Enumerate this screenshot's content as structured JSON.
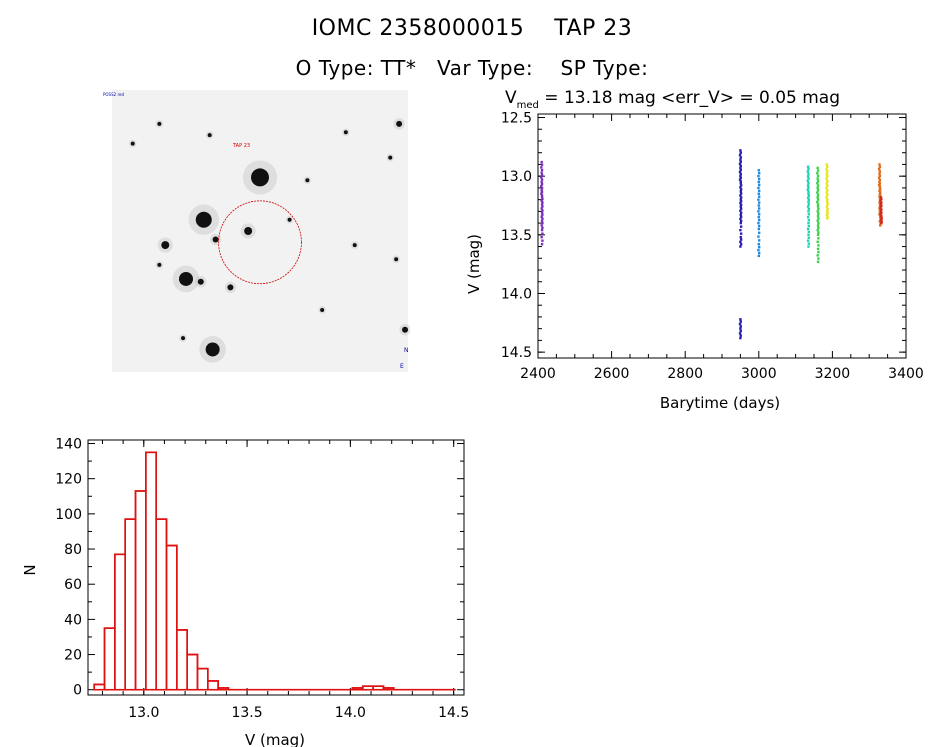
{
  "header": {
    "title": "IOMC 2358000015    TAP 23",
    "subtitle": "O Type: TT*   Var Type:    SP Type:"
  },
  "chart_data": [
    {
      "type": "image",
      "title": "",
      "description_labels": [
        "POSS2 red",
        "TAP 23",
        "E",
        "N"
      ],
      "stars": [
        {
          "x": 0.5,
          "y": 0.31,
          "r": 9
        },
        {
          "x": 0.31,
          "y": 0.46,
          "r": 8
        },
        {
          "x": 0.25,
          "y": 0.67,
          "r": 7
        },
        {
          "x": 0.34,
          "y": 0.92,
          "r": 7
        },
        {
          "x": 0.18,
          "y": 0.55,
          "r": 4
        },
        {
          "x": 0.46,
          "y": 0.5,
          "r": 4
        },
        {
          "x": 0.35,
          "y": 0.53,
          "r": 3
        },
        {
          "x": 0.4,
          "y": 0.7,
          "r": 3
        },
        {
          "x": 0.3,
          "y": 0.68,
          "r": 3
        },
        {
          "x": 0.97,
          "y": 0.12,
          "r": 3
        },
        {
          "x": 0.99,
          "y": 0.85,
          "r": 3
        },
        {
          "x": 0.16,
          "y": 0.12,
          "r": 2
        },
        {
          "x": 0.07,
          "y": 0.19,
          "r": 2
        },
        {
          "x": 0.33,
          "y": 0.16,
          "r": 2
        },
        {
          "x": 0.16,
          "y": 0.62,
          "r": 2
        },
        {
          "x": 0.66,
          "y": 0.32,
          "r": 2
        },
        {
          "x": 0.79,
          "y": 0.15,
          "r": 2
        },
        {
          "x": 0.94,
          "y": 0.24,
          "r": 2
        },
        {
          "x": 0.71,
          "y": 0.78,
          "r": 2
        },
        {
          "x": 0.6,
          "y": 0.46,
          "r": 2
        },
        {
          "x": 0.96,
          "y": 0.6,
          "r": 2
        },
        {
          "x": 0.24,
          "y": 0.88,
          "r": 2
        },
        {
          "x": 0.82,
          "y": 0.55,
          "r": 2
        }
      ],
      "target_circle": {
        "x": 0.5,
        "y": 0.54,
        "r": 0.14
      }
    },
    {
      "type": "scatter",
      "title_parts": {
        "prefix": "V",
        "sub": "med",
        "rest": " = 13.18 mag <err_V> = 0.05 mag"
      },
      "xlabel": "Barytime (days)",
      "ylabel": "V (mag)",
      "xlim": [
        2400,
        3400
      ],
      "ylim": [
        14.55,
        12.47
      ],
      "xticks": [
        2400,
        2600,
        2800,
        3000,
        3200,
        3400
      ],
      "yticks": [
        "12.5",
        "13.0",
        "13.5",
        "14.0",
        "14.5"
      ],
      "series": [
        {
          "name": "epoch1",
          "color": "#7b2fbf",
          "x": [
            2410,
            2410,
            2410,
            2410,
            2411,
            2411,
            2411,
            2411,
            2411,
            2411
          ],
          "y": [
            12.88,
            12.97,
            13.05,
            13.12,
            13.18,
            13.24,
            13.31,
            13.38,
            13.46,
            13.58
          ]
        },
        {
          "name": "epoch2",
          "color": "#2a1fb0",
          "x": [
            2950,
            2950,
            2950,
            2950,
            2951,
            2951,
            2951,
            2951,
            2951,
            2951,
            2951,
            2950,
            2950,
            2950,
            2950
          ],
          "y": [
            12.78,
            12.86,
            12.93,
            13.0,
            13.06,
            13.13,
            13.2,
            13.26,
            13.33,
            13.4,
            13.52,
            13.6,
            14.22,
            14.3,
            14.38
          ]
        },
        {
          "name": "epoch3",
          "color": "#1f8be0",
          "x": [
            3000,
            3000,
            3000,
            3000,
            3000,
            3000,
            3000,
            3000
          ],
          "y": [
            12.95,
            13.05,
            13.15,
            13.25,
            13.35,
            13.45,
            13.58,
            13.68
          ]
        },
        {
          "name": "epoch4",
          "color": "#1fd3b8",
          "x": [
            3134,
            3134,
            3134,
            3135,
            3135,
            3135,
            3135,
            3135,
            3135
          ],
          "y": [
            12.92,
            13.0,
            13.08,
            13.15,
            13.22,
            13.3,
            13.4,
            13.5,
            13.6
          ]
        },
        {
          "name": "epoch5",
          "color": "#3ad14a",
          "x": [
            3160,
            3160,
            3160,
            3160,
            3161,
            3161,
            3161,
            3161,
            3161,
            3161
          ],
          "y": [
            12.93,
            13.02,
            13.1,
            13.18,
            13.26,
            13.34,
            13.42,
            13.5,
            13.62,
            13.73
          ]
        },
        {
          "name": "epoch6",
          "color": "#e6e61a",
          "x": [
            3185,
            3185,
            3185,
            3185,
            3186,
            3186,
            3186
          ],
          "y": [
            12.9,
            12.98,
            13.06,
            13.14,
            13.22,
            13.3,
            13.36
          ]
        },
        {
          "name": "epoch7",
          "color": "#e06a1a",
          "x": [
            3328,
            3328,
            3328,
            3329,
            3329,
            3329,
            3329,
            3329,
            3330,
            3330
          ],
          "y": [
            12.9,
            12.98,
            13.05,
            13.1,
            13.15,
            13.2,
            13.25,
            13.3,
            13.35,
            13.42
          ]
        },
        {
          "name": "epoch7b",
          "color": "#d02a1a",
          "x": [
            3332,
            3332,
            3332,
            3333,
            3333
          ],
          "y": [
            13.18,
            13.24,
            13.3,
            13.35,
            13.4
          ]
        }
      ]
    },
    {
      "type": "bar",
      "title": "",
      "xlabel": "V (mag)",
      "ylabel": "N",
      "xlim": [
        12.73,
        14.55
      ],
      "ylim": [
        -3,
        142
      ],
      "xticks": [
        "13.0",
        "13.5",
        "14.0",
        "14.5"
      ],
      "yticks": [
        "0",
        "20",
        "40",
        "60",
        "80",
        "100",
        "120",
        "140"
      ],
      "bin_edges": [
        12.76,
        12.81,
        12.86,
        12.91,
        12.96,
        13.01,
        13.06,
        13.11,
        13.16,
        13.21,
        13.26,
        13.31,
        13.36,
        13.41,
        13.46,
        13.51,
        13.56,
        13.61,
        13.66,
        13.71,
        13.76,
        13.81,
        13.86,
        13.91,
        13.96,
        14.01,
        14.06,
        14.11,
        14.16,
        14.21,
        14.26,
        14.31,
        14.36,
        14.41,
        14.46
      ],
      "values": [
        3,
        35,
        77,
        97,
        113,
        135,
        97,
        82,
        34,
        20,
        12,
        5,
        1,
        0,
        0,
        0,
        0,
        0,
        0,
        0,
        0,
        0,
        0,
        0,
        0,
        1,
        2,
        2,
        1,
        0,
        0,
        0,
        0,
        0
      ],
      "color": "#e01010"
    }
  ]
}
